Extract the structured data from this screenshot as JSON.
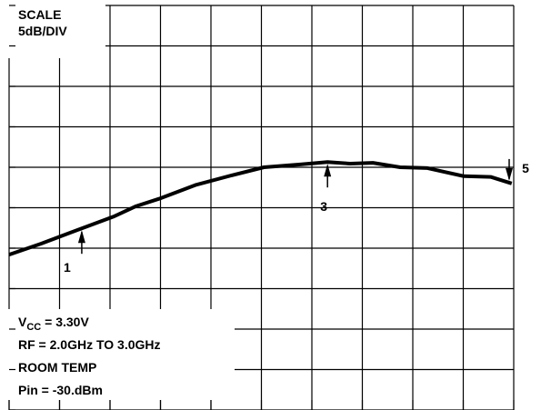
{
  "chart_data": {
    "type": "line",
    "annotations": {
      "scale": "SCALE",
      "scale_div": "5dB/DIV",
      "vcc_symbol": "V",
      "vcc_subscript": "CC",
      "vcc_value": " = 3.30V",
      "rf": "RF = 2.0GHz TO 3.0GHz",
      "temp": "ROOM TEMP",
      "pin": "Pin = -30.dBm"
    },
    "x": [
      0,
      0.63,
      1.44,
      2.07,
      2.52,
      2.97,
      3.69,
      4.41,
      5.05,
      5.77,
      6.31,
      6.76,
      7.21,
      7.75,
      8.29,
      9.01,
      9.55,
      9.96
    ],
    "series": [
      {
        "color": "#000000",
        "values": [
          3.84,
          4.11,
          4.49,
          4.78,
          5.04,
          5.22,
          5.56,
          5.8,
          6.0,
          6.07,
          6.13,
          6.09,
          6.11,
          6.0,
          5.98,
          5.78,
          5.76,
          5.6
        ]
      }
    ],
    "markers": [
      {
        "label": "1",
        "x": 1.44
      },
      {
        "label": "3",
        "x": 6.31
      },
      {
        "label": "5",
        "x": 9.91
      }
    ],
    "xlim": [
      0,
      10
    ],
    "ylim": [
      0,
      10
    ],
    "xticks": [
      0,
      1,
      2,
      3,
      4,
      5,
      6,
      7,
      8,
      9,
      10
    ],
    "yticks": [
      0,
      1,
      2,
      3,
      4,
      5,
      6,
      7,
      8,
      9,
      10
    ],
    "grid": true
  }
}
